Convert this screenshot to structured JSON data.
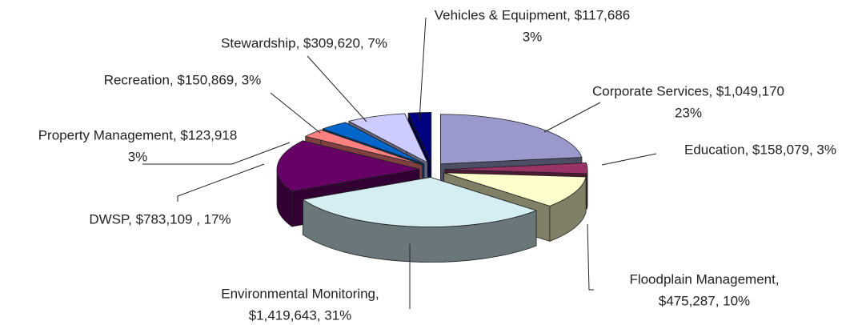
{
  "chart_data": {
    "type": "pie",
    "categories": [
      "Corporate Services",
      "Education",
      "Floodplain Management",
      "Environmental Monitoring",
      "DWSP",
      "Property Management",
      "Recreation",
      "Stewardship",
      "Vehicles & Equipment"
    ],
    "values": [
      1049170,
      158079,
      475287,
      1419643,
      783109,
      123918,
      150869,
      309620,
      117686
    ],
    "percents": [
      23,
      3,
      10,
      31,
      17,
      3,
      3,
      7,
      3
    ],
    "value_labels": [
      [
        "Corporate Services, $1,049,170",
        "23%"
      ],
      [
        "Education, $158,079, 3%"
      ],
      [
        "Floodplain Management,",
        "$475,287, 10%"
      ],
      [
        "Environmental Monitoring,",
        "$1,419,643, 31%"
      ],
      [
        "DWSP, $783,109 , 17%"
      ],
      [
        "Property Management, $123,918",
        "3%"
      ],
      [
        "Recreation, $150,869, 3%"
      ],
      [
        "Stewardship, $309,620, 7%"
      ],
      [
        "Vehicles & Equipment, $117,686",
        "3%"
      ]
    ],
    "colors": [
      "#9999cc",
      "#993366",
      "#ffffcc",
      "#d4eef4",
      "#660066",
      "#ff8080",
      "#0066cc",
      "#ccccff",
      "#000080"
    ],
    "explode": true,
    "three_d": true
  }
}
